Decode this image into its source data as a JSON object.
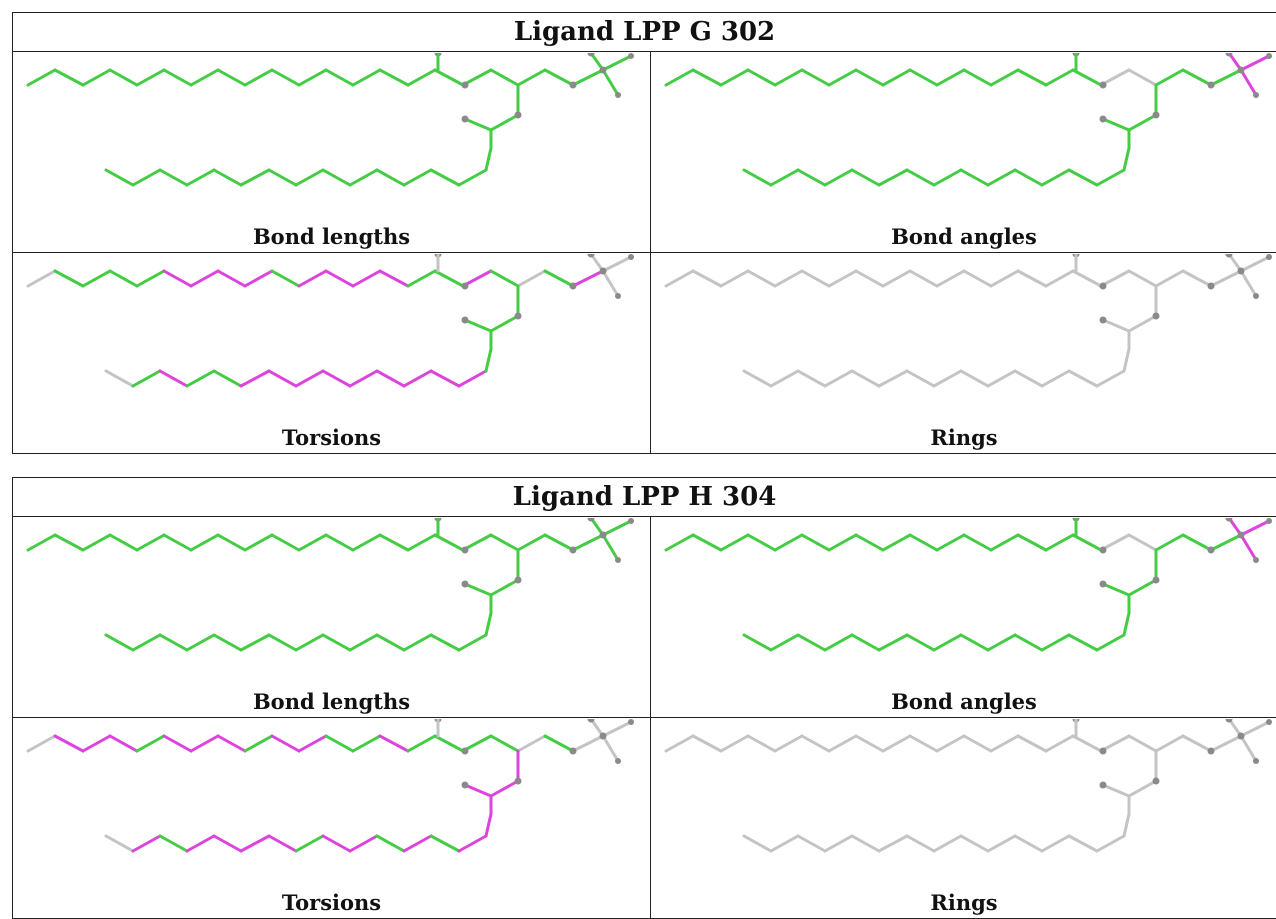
{
  "colors": {
    "ok": "#44cc44",
    "outlier": "#dd44dd",
    "none": "#c4c4c4",
    "atom": "#8a8a8a",
    "border": "#222222"
  },
  "blocks": [
    {
      "title": "Ligand LPP G 302",
      "panels": [
        {
          "caption": "Bond lengths",
          "colors": {
            "chain1": "gggggggggggggggggg",
            "chain2": "ggggggggggggggg",
            "branch": "gggggg",
            "head": "gggg",
            "atoms": "ggggggg"
          }
        },
        {
          "caption": "Bond angles",
          "colors": {
            "chain1": "ggggggggggggggggnn",
            "chain2": "ggggggggggggggg",
            "branch": "gggggg",
            "head": "gmmm",
            "atoms": "ggggggg"
          }
        },
        {
          "caption": "Torsions",
          "colors": {
            "chain1": "nggggmmmmgmmmmggmg",
            "chain2": "ngmggmmmmmmmmmg",
            "branch": "nggggg",
            "head": "mnnn",
            "atoms": "nnnnnnn"
          }
        },
        {
          "caption": "Rings",
          "colors": {
            "chain1": "nnnnnnnnnnnnnnnnnn",
            "chain2": "nnnnnnnnnnnnnnn",
            "branch": "nnnnnn",
            "head": "nnnn",
            "atoms": "nnnnnnn"
          }
        }
      ]
    },
    {
      "title": "Ligand LPP H 304",
      "panels": [
        {
          "caption": "Bond lengths",
          "colors": {
            "chain1": "gggggggggggggggggg",
            "chain2": "ggggggggggggggg",
            "branch": "gggggg",
            "head": "gggg",
            "atoms": "ggggggg"
          }
        },
        {
          "caption": "Bond angles",
          "colors": {
            "chain1": "ggggggggggggggggnn",
            "chain2": "ggggggggggggggg",
            "branch": "gggggg",
            "head": "gmmm",
            "atoms": "ggggggg"
          }
        },
        {
          "caption": "Torsions",
          "colors": {
            "chain1": "nmmmgmmmgmmggmgggg",
            "chain2": "nmgmmmmgmmgmgmm",
            "branch": "ngmmmm",
            "head": "nnnn",
            "atoms": "nnnnnnn"
          }
        },
        {
          "caption": "Rings",
          "colors": {
            "chain1": "nnnnnnnnnnnnnnnnnn",
            "chain2": "nnnnnnnnnnnnnnn",
            "branch": "nnnnnn",
            "head": "nnnn",
            "atoms": "nnnnnnn"
          }
        }
      ]
    }
  ]
}
